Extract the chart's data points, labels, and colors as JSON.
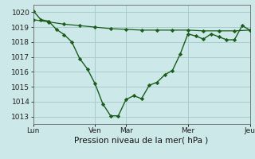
{
  "background_color": "#cce8e8",
  "line_color": "#1a5c1a",
  "grid_color": "#aacccc",
  "ylim": [
    1012.5,
    1020.5
  ],
  "yticks": [
    1013,
    1014,
    1015,
    1016,
    1017,
    1018,
    1019,
    1020
  ],
  "xlabel": "Pression niveau de la mer( hPa )",
  "xtick_positions": [
    0,
    48,
    72,
    120,
    168
  ],
  "xtick_labels": [
    "Lun",
    "Ven",
    "Mar",
    "Mer",
    "Jeu"
  ],
  "series1_x": [
    0,
    6,
    12,
    18,
    24,
    30,
    36,
    42,
    48,
    54,
    60,
    66,
    72,
    78,
    84,
    90,
    96,
    102,
    108,
    114,
    120,
    126,
    132,
    138,
    144,
    150,
    156,
    162,
    168
  ],
  "series1_y": [
    1020.1,
    1019.5,
    1019.4,
    1018.85,
    1018.5,
    1018.0,
    1016.9,
    1016.2,
    1015.2,
    1013.85,
    1013.05,
    1013.05,
    1014.15,
    1014.4,
    1014.2,
    1015.1,
    1015.3,
    1015.8,
    1016.1,
    1017.2,
    1018.55,
    1018.4,
    1018.2,
    1018.55,
    1018.35,
    1018.15,
    1018.15,
    1019.1,
    1018.8
  ],
  "series2_x": [
    0,
    12,
    24,
    36,
    48,
    60,
    72,
    84,
    96,
    108,
    120,
    132,
    144,
    156,
    168
  ],
  "series2_y": [
    1019.5,
    1019.35,
    1019.2,
    1019.1,
    1019.0,
    1018.9,
    1018.85,
    1018.8,
    1018.8,
    1018.8,
    1018.8,
    1018.75,
    1018.75,
    1018.75,
    1018.8
  ],
  "vline_x": [
    0,
    48,
    72,
    120,
    168
  ],
  "tick_fontsize": 6.5,
  "label_fontsize": 7.5
}
